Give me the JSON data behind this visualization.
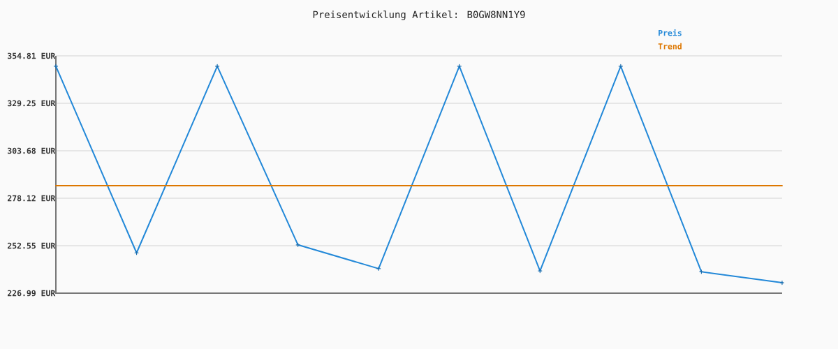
{
  "chart_data": {
    "type": "line",
    "title": "Preisentwicklung Artikel: B0GW8NN1Y9",
    "categories": [
      null,
      null,
      null,
      null,
      null,
      null,
      null,
      null,
      null,
      null
    ],
    "series": [
      {
        "name": "Preis",
        "color": "#2288d8",
        "marker": "cross",
        "values": [
          349.2,
          248.7,
          349.2,
          253.0,
          240.2,
          349.2,
          239.0,
          349.2,
          238.5,
          232.6
        ]
      },
      {
        "name": "Trend",
        "color": "#dd7700",
        "values": [
          284.9,
          284.9,
          284.9,
          284.9,
          284.9,
          284.9,
          284.9,
          284.9,
          284.9,
          284.9
        ]
      }
    ],
    "ylim": [
      226.99,
      354.81
    ],
    "yticks": [
      {
        "value": 226.99,
        "label": "226.99 EUR"
      },
      {
        "value": 252.55,
        "label": "252.55 EUR"
      },
      {
        "value": 278.12,
        "label": "278.12 EUR"
      },
      {
        "value": 303.68,
        "label": "303.68 EUR"
      },
      {
        "value": 329.25,
        "label": "329.25 EUR"
      },
      {
        "value": 354.81,
        "label": "354.81 EUR"
      }
    ],
    "grid": "y",
    "legend": "top right",
    "tick_labels": "y"
  }
}
